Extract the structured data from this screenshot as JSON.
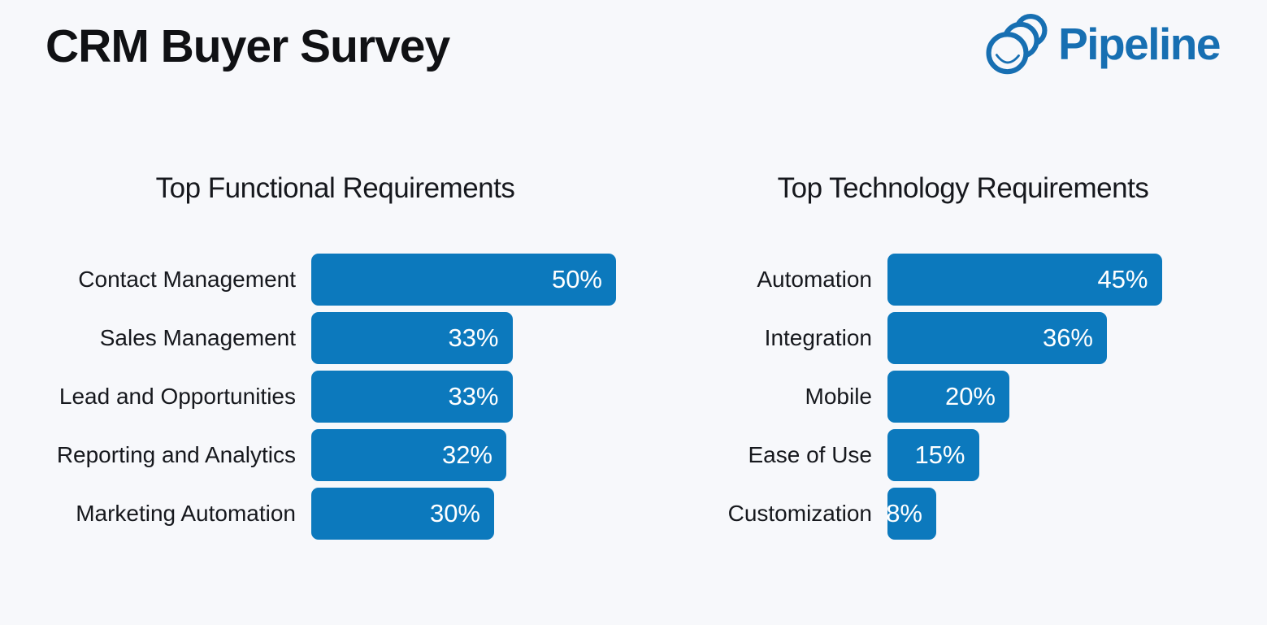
{
  "page": {
    "background": "#f7f8fb"
  },
  "header": {
    "title": "CRM Buyer Survey",
    "logo": {
      "brand": "Pipeline",
      "icon": "pipeline-rings-icon",
      "text_color": "#176fb2"
    }
  },
  "colors": {
    "bar": "#0c79bd",
    "bar_label": "#ffffff",
    "text": "#16181d",
    "background": "#f7f8fb"
  },
  "chart_data": [
    {
      "type": "bar",
      "orientation": "horizontal",
      "title": "Top Functional Requirements",
      "categories": [
        "Contact Management",
        "Sales Management",
        "Lead and Opportunities",
        "Reporting and Analytics",
        "Marketing Automation"
      ],
      "values": [
        50,
        33,
        33,
        32,
        30
      ],
      "value_labels": [
        "50%",
        "33%",
        "33%",
        "32%",
        "30%"
      ],
      "unit": "%",
      "xlim": [
        0,
        50
      ],
      "bar_color": "#0c79bd",
      "value_label_position": "inside-end",
      "grid": false,
      "axes_visible": false
    },
    {
      "type": "bar",
      "orientation": "horizontal",
      "title": "Top Technology Requirements",
      "categories": [
        "Automation",
        "Integration",
        "Mobile",
        "Ease of Use",
        "Customization"
      ],
      "values": [
        45,
        36,
        20,
        15,
        8
      ],
      "value_labels": [
        "45%",
        "36%",
        "20%",
        "15%",
        "8%"
      ],
      "unit": "%",
      "xlim": [
        0,
        45
      ],
      "bar_color": "#0c79bd",
      "value_label_position": "inside-end",
      "grid": false,
      "axes_visible": false
    }
  ]
}
